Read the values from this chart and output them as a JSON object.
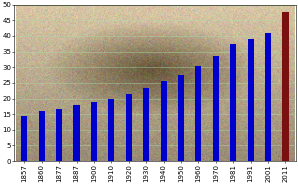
{
  "years": [
    "1857",
    "1860",
    "1877",
    "1887",
    "1900",
    "1910",
    "1920",
    "1930",
    "1940",
    "1950",
    "1960",
    "1970",
    "1981",
    "1991",
    "2001",
    "2011"
  ],
  "values": [
    14.5,
    16.0,
    16.5,
    18.0,
    19.0,
    20.0,
    21.5,
    23.5,
    25.5,
    27.5,
    30.5,
    33.5,
    37.5,
    39.0,
    41.0,
    47.5
  ],
  "bar_colors": [
    "#0000cc",
    "#0000cc",
    "#0000cc",
    "#0000cc",
    "#0000cc",
    "#0000cc",
    "#0000cc",
    "#0000cc",
    "#0000cc",
    "#0000cc",
    "#0000cc",
    "#0000cc",
    "#0000cc",
    "#0000cc",
    "#0000cc",
    "#7a1010"
  ],
  "ylim": [
    0,
    50
  ],
  "yticks": [
    0,
    5,
    10,
    15,
    20,
    25,
    30,
    35,
    40,
    45,
    50
  ],
  "sepia_light": [
    0.85,
    0.78,
    0.65
  ],
  "sepia_dark": [
    0.35,
    0.28,
    0.18
  ],
  "grid_color": "#aaddaa",
  "tick_fontsize": 5.0,
  "bar_width": 0.35,
  "figsize": [
    2.98,
    1.84
  ],
  "dpi": 100
}
